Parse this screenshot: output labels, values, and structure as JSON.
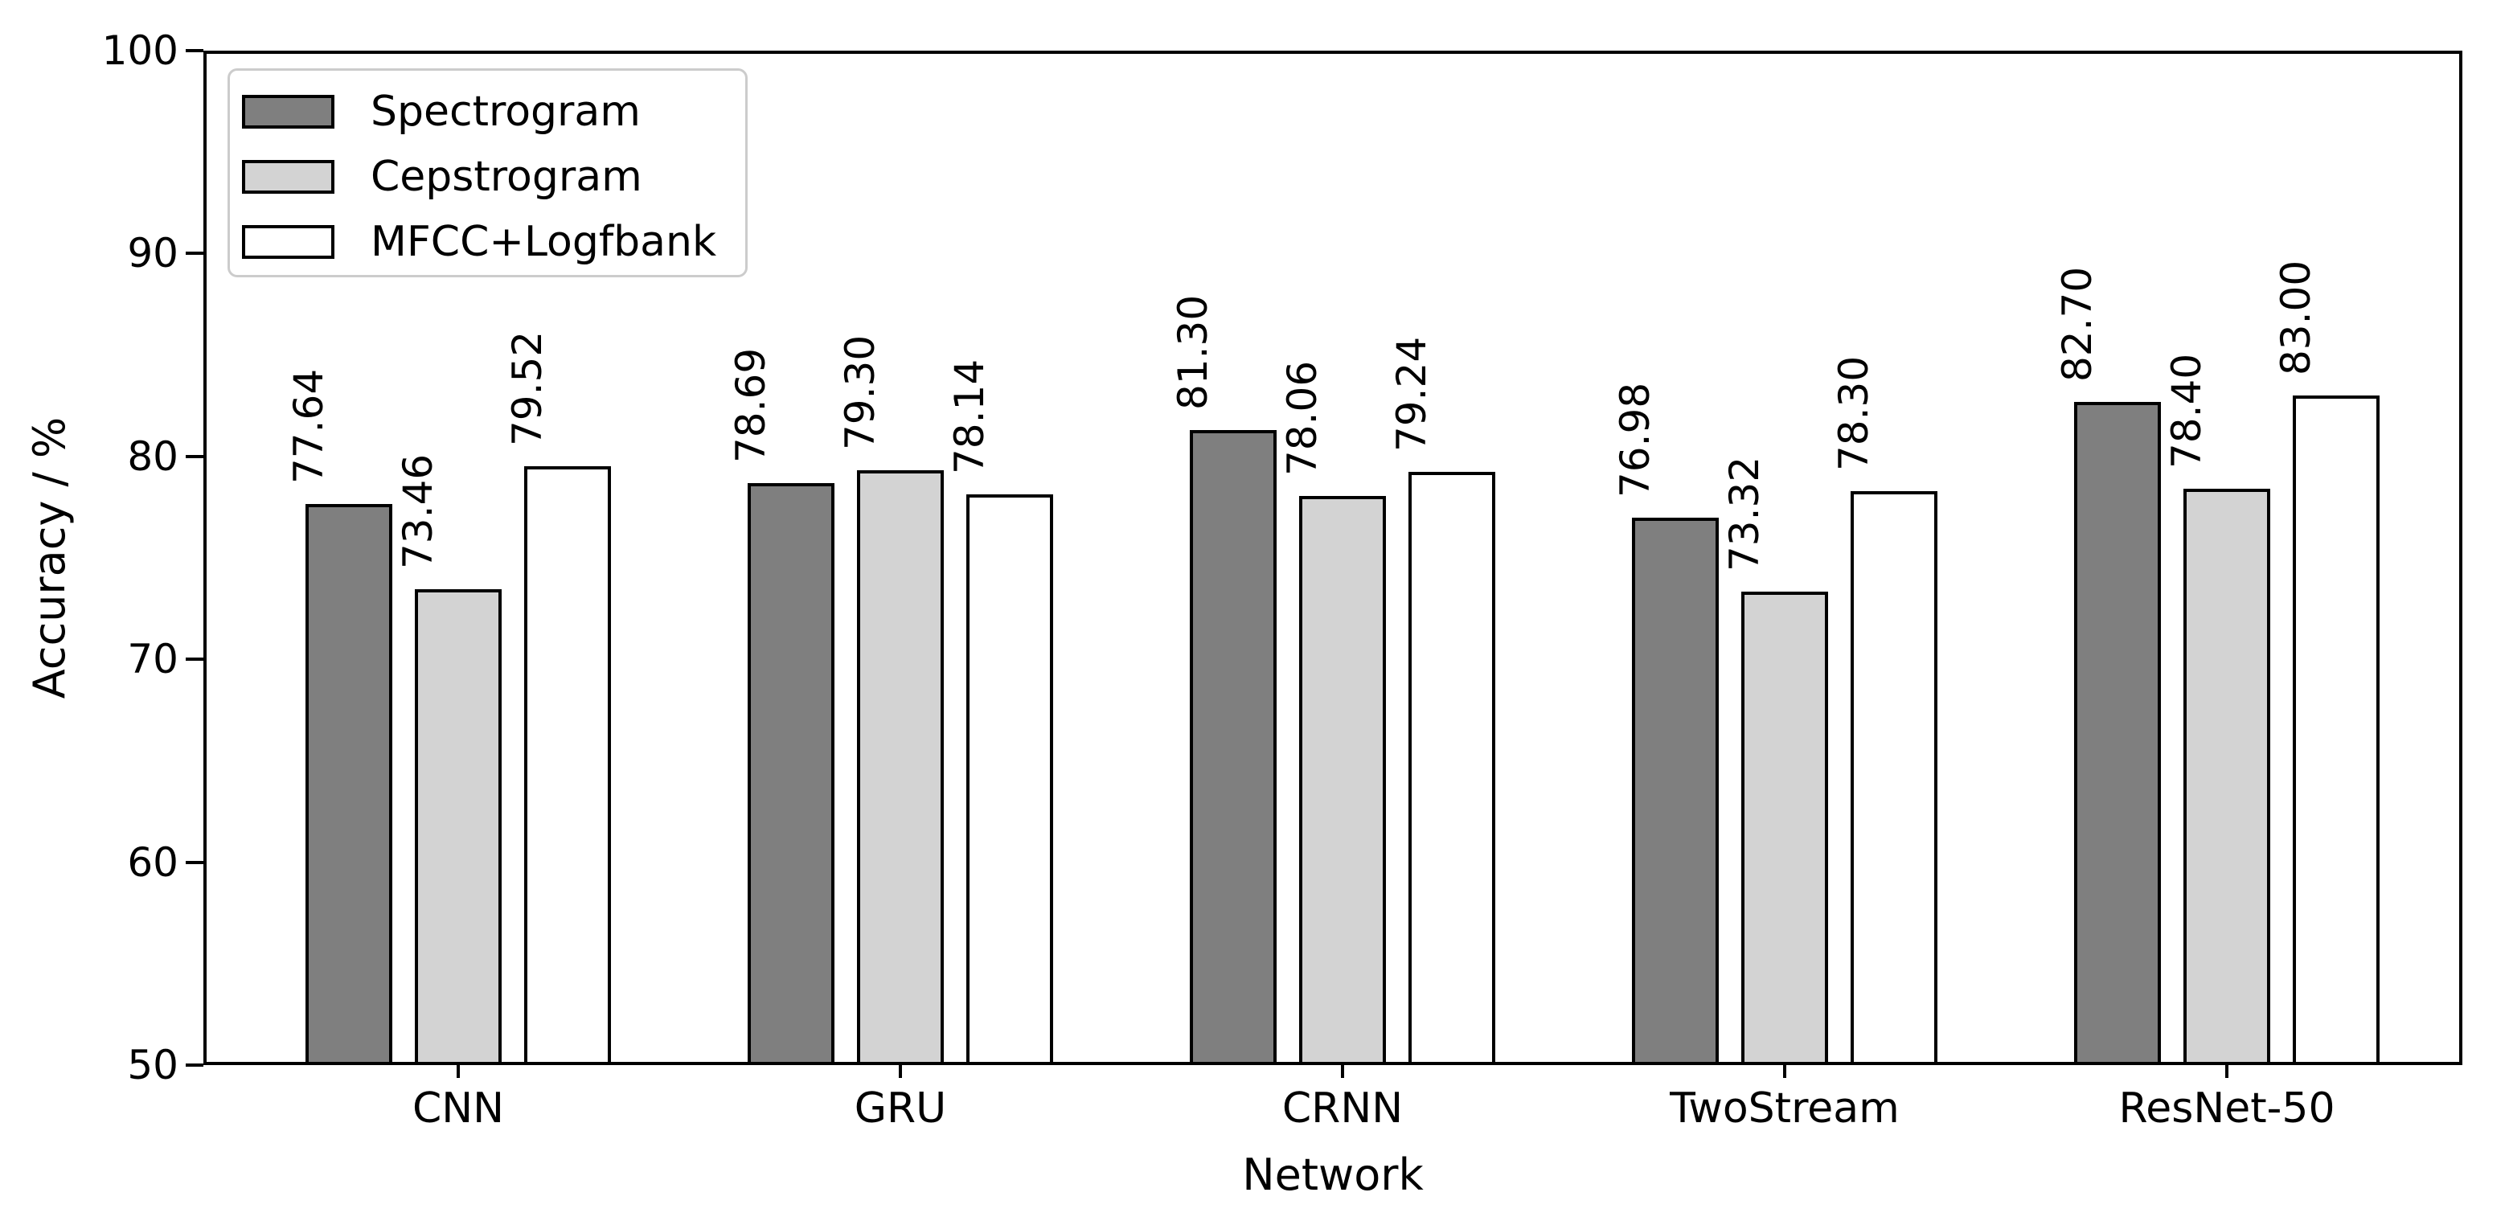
{
  "chart_data": {
    "type": "bar",
    "title": "",
    "xlabel": "Network",
    "ylabel": "Accuracy / %",
    "categories": [
      "CNN",
      "GRU",
      "CRNN",
      "TwoStream",
      "ResNet-50"
    ],
    "series": [
      {
        "name": "Spectrogram",
        "color": "#7f7f7f",
        "values": [
          77.64,
          78.69,
          81.3,
          76.98,
          82.7
        ],
        "labels": [
          "77.64",
          "78.69",
          "81.30",
          "76.98",
          "82.70"
        ]
      },
      {
        "name": "Cepstrogram",
        "color": "#d3d3d3",
        "values": [
          73.46,
          79.3,
          78.06,
          73.32,
          78.4
        ],
        "labels": [
          "73.46",
          "79.30",
          "78.06",
          "73.32",
          "78.40"
        ]
      },
      {
        "name": "MFCC+Logfbank",
        "color": "#ffffff",
        "values": [
          79.52,
          78.14,
          79.24,
          78.3,
          83.0
        ],
        "labels": [
          "79.52",
          "78.14",
          "79.24",
          "78.30",
          "83.00"
        ]
      }
    ],
    "y_ticks": [
      "50",
      "60",
      "70",
      "80",
      "90",
      "100"
    ],
    "y_tick_values": [
      50,
      60,
      70,
      80,
      90,
      100
    ],
    "ylim": [
      50,
      100
    ],
    "legend_position": "upper left",
    "grid": false,
    "bar_edge_color": "#000000",
    "axis_color": "#000000",
    "background_color": "#ffffff"
  }
}
